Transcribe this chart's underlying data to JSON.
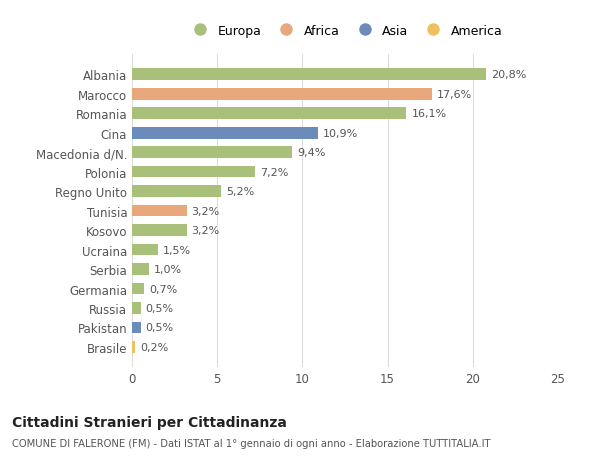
{
  "categories": [
    "Albania",
    "Marocco",
    "Romania",
    "Cina",
    "Macedonia d/N.",
    "Polonia",
    "Regno Unito",
    "Tunisia",
    "Kosovo",
    "Ucraina",
    "Serbia",
    "Germania",
    "Russia",
    "Pakistan",
    "Brasile"
  ],
  "values": [
    20.8,
    17.6,
    16.1,
    10.9,
    9.4,
    7.2,
    5.2,
    3.2,
    3.2,
    1.5,
    1.0,
    0.7,
    0.5,
    0.5,
    0.2
  ],
  "labels": [
    "20,8%",
    "17,6%",
    "16,1%",
    "10,9%",
    "9,4%",
    "7,2%",
    "5,2%",
    "3,2%",
    "3,2%",
    "1,5%",
    "1,0%",
    "0,7%",
    "0,5%",
    "0,5%",
    "0,2%"
  ],
  "continents": [
    "Europa",
    "Africa",
    "Europa",
    "Asia",
    "Europa",
    "Europa",
    "Europa",
    "Africa",
    "Europa",
    "Europa",
    "Europa",
    "Europa",
    "Europa",
    "Asia",
    "America"
  ],
  "colors": {
    "Europa": "#a8c07a",
    "Africa": "#e8a87c",
    "Asia": "#6b8cba",
    "America": "#f0c060"
  },
  "legend_order": [
    "Europa",
    "Africa",
    "Asia",
    "America"
  ],
  "title": "Cittadini Stranieri per Cittadinanza",
  "subtitle": "COMUNE DI FALERONE (FM) - Dati ISTAT al 1° gennaio di ogni anno - Elaborazione TUTTITALIA.IT",
  "xlim": [
    0,
    25
  ],
  "xticks": [
    0,
    5,
    10,
    15,
    20,
    25
  ],
  "bg_color": "#ffffff",
  "grid_color": "#dddddd"
}
